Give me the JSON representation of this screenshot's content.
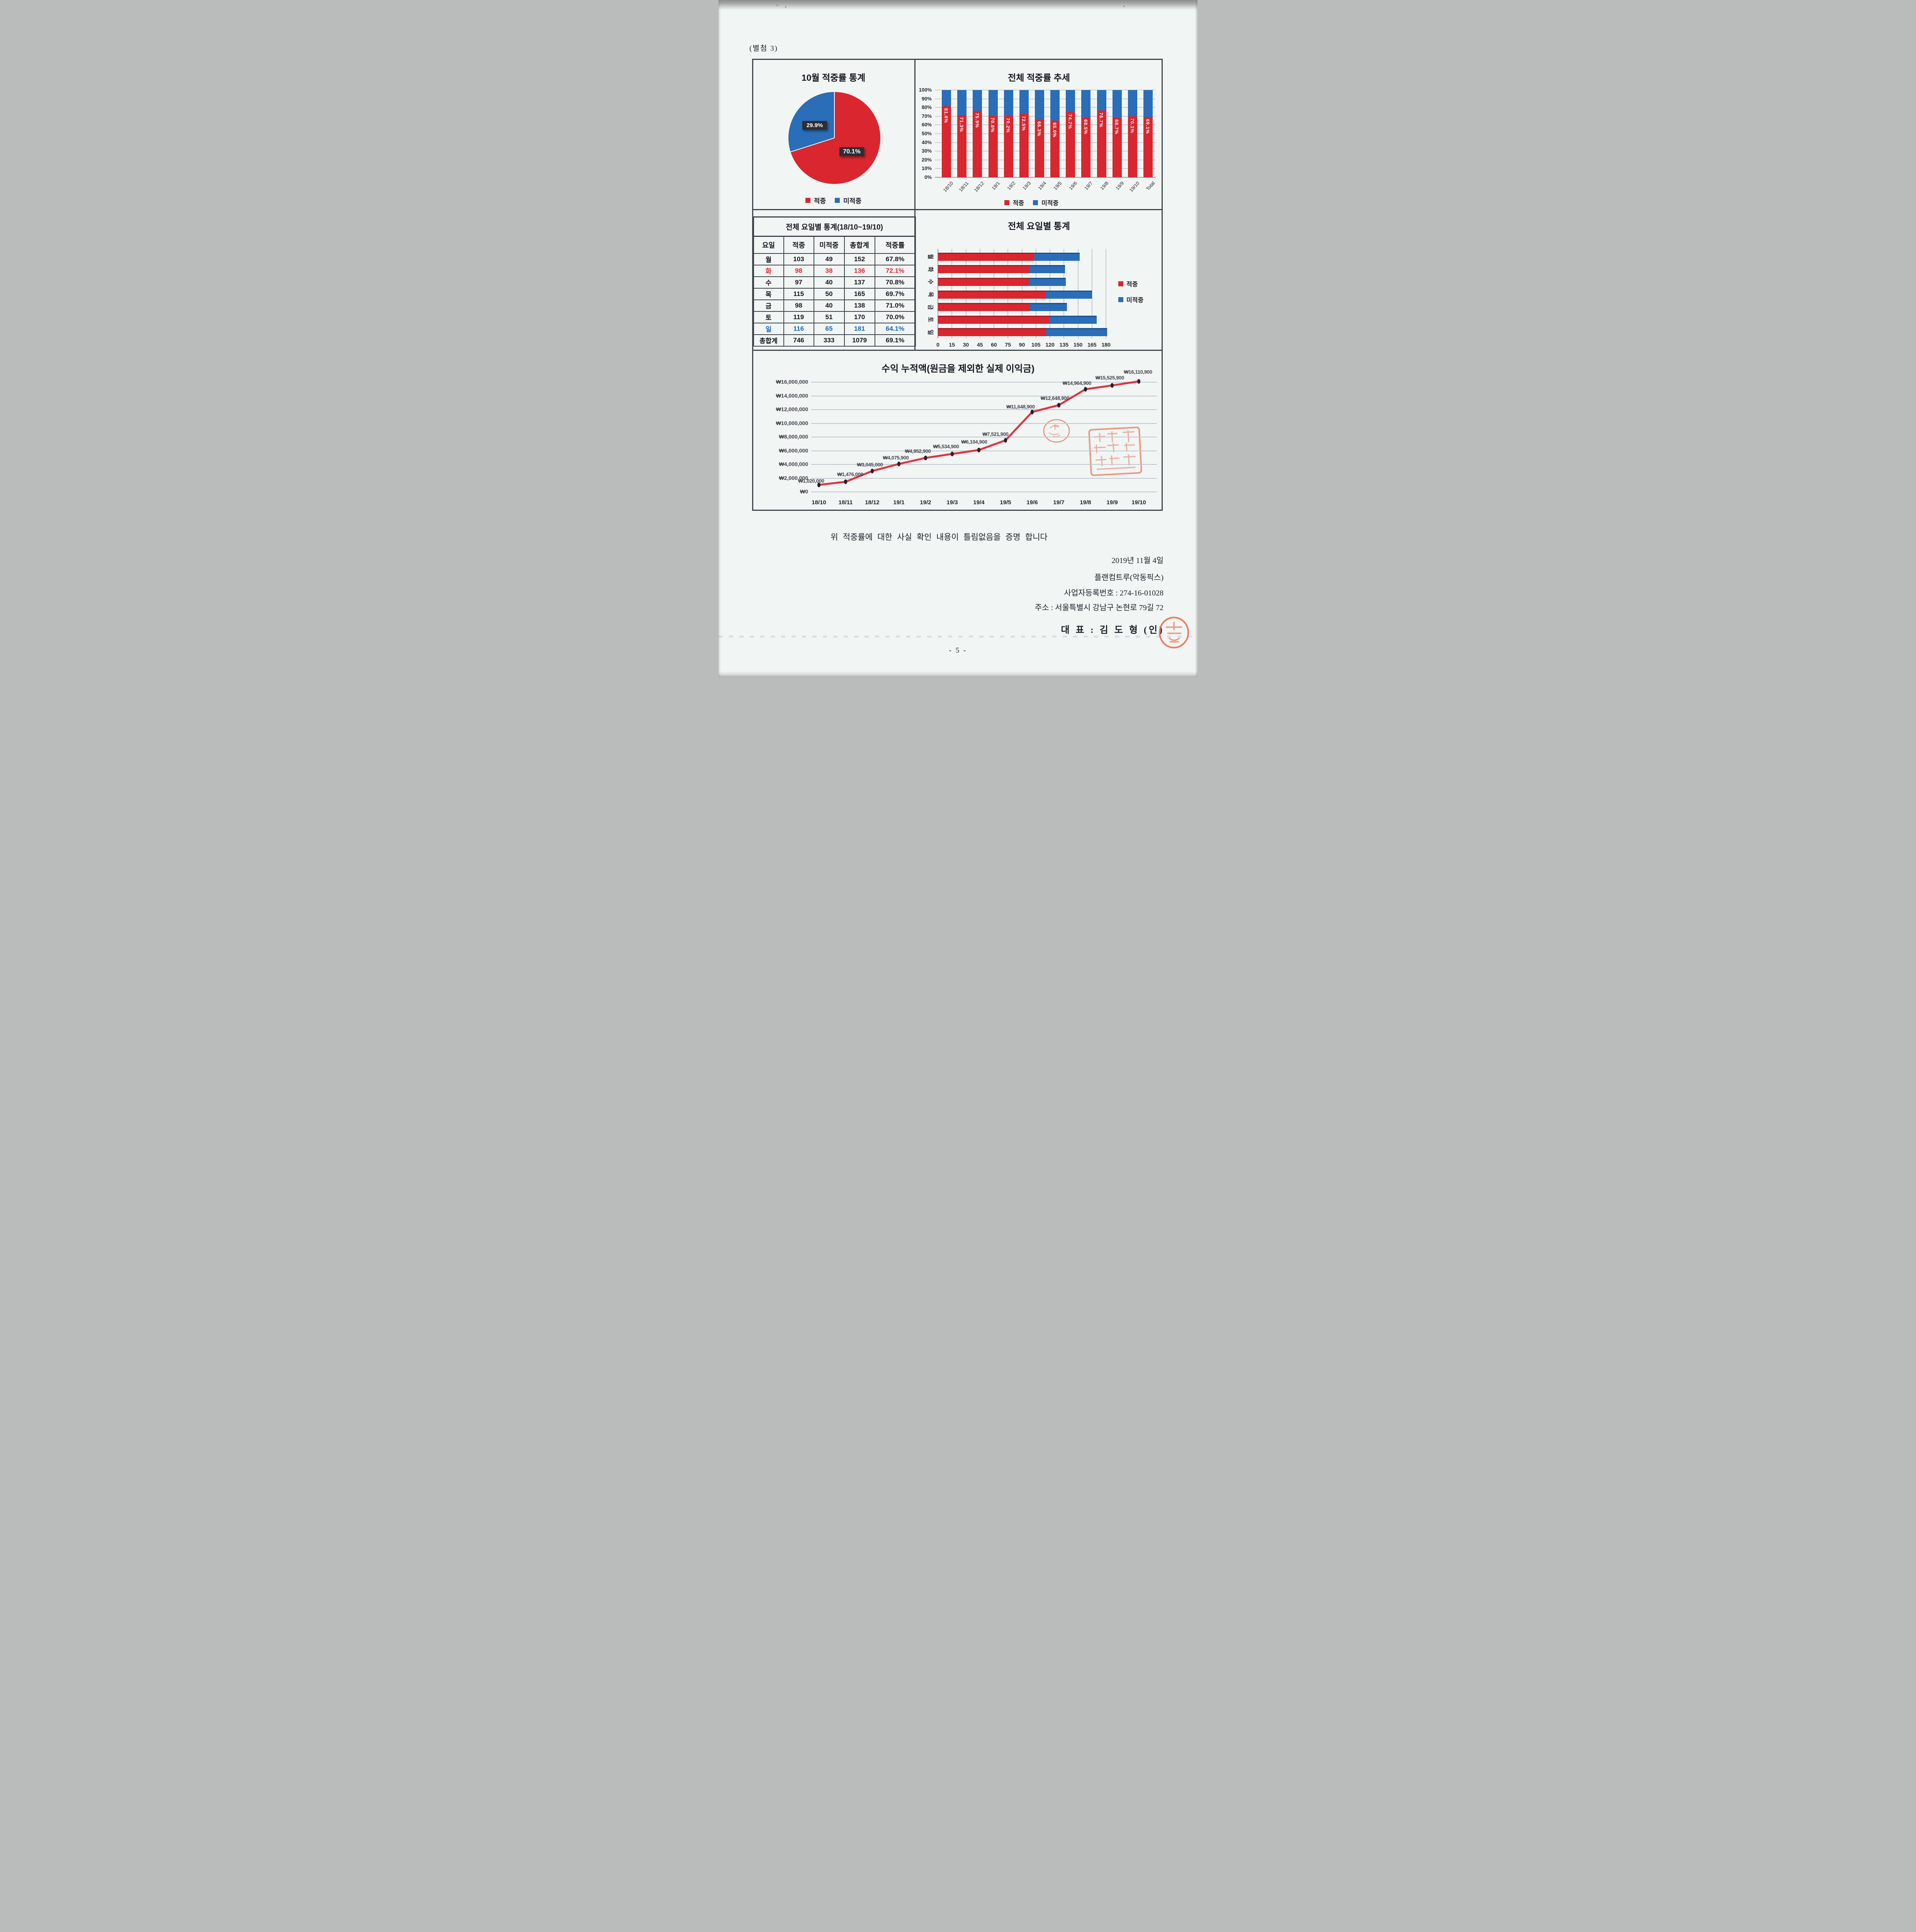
{
  "page": {
    "attachment_label": "(별첨 3)",
    "certification": "위 적중률에 대한 사실 확인 내용이 틀림없음을 증명 합니다",
    "date_line": "2019년 11월 4일",
    "company_line": "플랜컴트루(악동픽스)",
    "business_no_line": "사업자등록번호 : 274-16-01028",
    "address_line": "주소 : 서울특별시 강남구 논현로 79길 72",
    "representative_line": "대 표 : 김 도 형  (인)",
    "page_number": "- 5 -"
  },
  "colors": {
    "hit_red": "#d9262f",
    "miss_blue": "#2a6db8",
    "line_red": "#e0333e",
    "marker_dark": "#23232e",
    "label_box": "#2d2d35",
    "stamp_orange": "#e85a36",
    "table_red": "#e02531",
    "table_blue": "#1769c1"
  },
  "chart_data": [
    {
      "type": "pie",
      "title": "10월 적중률 통계",
      "labels": [
        "적중",
        "미적중"
      ],
      "values": [
        70.1,
        29.9
      ],
      "value_labels": [
        "70.1%",
        "29.9%"
      ],
      "colors": [
        "#d9262f",
        "#2a6db8"
      ],
      "legend_position": "bottom"
    },
    {
      "type": "bar",
      "subtype": "stacked-percent-column",
      "title": "전체 적중률 추세",
      "categories": [
        "18/10",
        "18/11",
        "18/12",
        "19/1",
        "19/2",
        "19/3",
        "19/4",
        "19/5",
        "19/6",
        "19/7",
        "19/8",
        "19/9",
        "19/10",
        "Total"
      ],
      "series": [
        {
          "name": "적중",
          "values": [
            81.6,
            71.3,
            75.9,
            70.8,
            70.2,
            72.5,
            66.3,
            65.0,
            74.7,
            68.5,
            76.7,
            68.7,
            70.1,
            69.1
          ]
        },
        {
          "name": "미적중",
          "values": [
            18.4,
            28.7,
            24.1,
            29.2,
            29.8,
            27.5,
            33.7,
            35.0,
            25.3,
            31.5,
            23.3,
            31.3,
            29.9,
            30.9
          ]
        }
      ],
      "value_labels": [
        "81.6%",
        "71.3%",
        "75.9%",
        "70.8%",
        "70.2%",
        "72.5%",
        "66.3%",
        "65.0%",
        "74.7%",
        "68.5%",
        "76.7%",
        "68.7%",
        "70.1%",
        "69.1%"
      ],
      "y_ticks": [
        "0%",
        "10%",
        "20%",
        "30%",
        "40%",
        "50%",
        "60%",
        "70%",
        "80%",
        "90%",
        "100%"
      ],
      "ylim": [
        0,
        100
      ],
      "grid": true,
      "legend_position": "bottom"
    },
    {
      "type": "table",
      "title": "전체 요일별 통계(18/10~19/10)",
      "headers": [
        "요일",
        "적중",
        "미적중",
        "총합계",
        "적중률"
      ],
      "rows": [
        {
          "cells": [
            "월",
            "103",
            "49",
            "152",
            "67.8%"
          ],
          "style": "normal"
        },
        {
          "cells": [
            "화",
            "98",
            "38",
            "136",
            "72.1%"
          ],
          "style": "red"
        },
        {
          "cells": [
            "수",
            "97",
            "40",
            "137",
            "70.8%"
          ],
          "style": "normal"
        },
        {
          "cells": [
            "목",
            "115",
            "50",
            "165",
            "69.7%"
          ],
          "style": "normal"
        },
        {
          "cells": [
            "금",
            "98",
            "40",
            "138",
            "71.0%"
          ],
          "style": "normal"
        },
        {
          "cells": [
            "토",
            "119",
            "51",
            "170",
            "70.0%"
          ],
          "style": "normal"
        },
        {
          "cells": [
            "일",
            "116",
            "65",
            "181",
            "64.1%"
          ],
          "style": "blue"
        },
        {
          "cells": [
            "총합계",
            "746",
            "333",
            "1079",
            "69.1%"
          ],
          "style": "total"
        }
      ]
    },
    {
      "type": "bar",
      "subtype": "horizontal-stacked",
      "title": "전체 요일별 통계",
      "categories": [
        "월",
        "화",
        "수",
        "목",
        "금",
        "토",
        "일"
      ],
      "series": [
        {
          "name": "적중",
          "values": [
            103,
            98,
            97,
            115,
            98,
            119,
            116
          ]
        },
        {
          "name": "미적중",
          "values": [
            49,
            38,
            40,
            50,
            40,
            51,
            65
          ]
        }
      ],
      "x_ticks": [
        "0",
        "15",
        "30",
        "45",
        "60",
        "75",
        "90",
        "105",
        "120",
        "135",
        "150",
        "165",
        "180"
      ],
      "xlim": [
        0,
        182
      ],
      "grid": true,
      "legend_position": "right"
    },
    {
      "type": "line",
      "title": "수익 누적액(원금을 제외한 실제 이익금)",
      "x": [
        "18/10",
        "18/11",
        "18/12",
        "19/1",
        "19/2",
        "19/3",
        "19/4",
        "19/5",
        "19/6",
        "19/7",
        "19/8",
        "19/9",
        "19/10"
      ],
      "values": [
        1020000,
        1476000,
        3045000,
        4075900,
        4952900,
        5534900,
        6104900,
        7521900,
        11648900,
        12648900,
        14964900,
        15525900,
        16110900
      ],
      "labels": [
        "₩1,020,000",
        "₩1,476,000",
        "₩3,045,000",
        "₩4,075,900",
        "₩4,952,900",
        "₩5,534,900",
        "₩6,104,900",
        "₩7,521,900",
        "₩11,648,900",
        "₩12,648,900",
        "₩14,964,900",
        "₩15,525,900",
        "₩16,110,900"
      ],
      "y_ticks": [
        "₩0",
        "₩2,000,000",
        "₩4,000,000",
        "₩6,000,000",
        "₩8,000,000",
        "₩10,000,000",
        "₩12,000,000",
        "₩14,000,000",
        "₩16,000,000"
      ],
      "ylim": [
        0,
        16000000
      ],
      "grid": true
    }
  ]
}
